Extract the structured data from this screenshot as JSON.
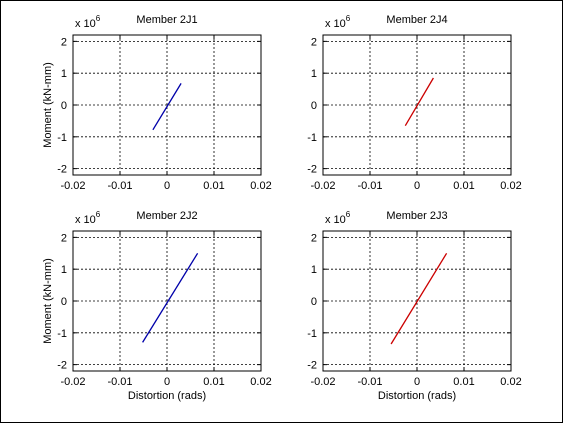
{
  "chart_data": [
    {
      "type": "line",
      "title": "Member 2J1",
      "xlabel": "",
      "ylabel": "Moment (kN-mm)",
      "multiplier": {
        "base": "x 10",
        "exponent": "6"
      },
      "xlim": [
        -0.02,
        0.02
      ],
      "ylim": [
        -2.2,
        2.2
      ],
      "xticks": [
        "-0.02",
        "-0.01",
        "0",
        "0.01",
        "0.02"
      ],
      "yticks": [
        "2",
        "1",
        "0",
        "-1",
        "-2"
      ],
      "grid": true,
      "series": [
        {
          "color": "#0000aa",
          "x": [
            -0.003,
            0.003
          ],
          "y": [
            -0.78,
            0.68
          ]
        }
      ]
    },
    {
      "type": "line",
      "title": "Member 2J4",
      "xlabel": "",
      "ylabel": "",
      "multiplier": {
        "base": "x 10",
        "exponent": "6"
      },
      "xlim": [
        -0.02,
        0.02
      ],
      "ylim": [
        -2.2,
        2.2
      ],
      "xticks": [
        "-0.02",
        "-0.01",
        "0",
        "0.01",
        "0.02"
      ],
      "yticks": [
        "2",
        "1",
        "0",
        "-1",
        "-2"
      ],
      "grid": true,
      "series": [
        {
          "color": "#cc0000",
          "x": [
            -0.0025,
            0.0035
          ],
          "y": [
            -0.65,
            0.85
          ]
        }
      ]
    },
    {
      "type": "line",
      "title": "Member 2J2",
      "xlabel": "Distortion (rads)",
      "ylabel": "Moment (kN-mm)",
      "multiplier": {
        "base": "x 10",
        "exponent": "6"
      },
      "xlim": [
        -0.02,
        0.02
      ],
      "ylim": [
        -2.2,
        2.2
      ],
      "xticks": [
        "-0.02",
        "-0.01",
        "0",
        "0.01",
        "0.02"
      ],
      "yticks": [
        "2",
        "1",
        "0",
        "-1",
        "-2"
      ],
      "grid": true,
      "series": [
        {
          "color": "#0000aa",
          "x": [
            -0.0052,
            0.0065
          ],
          "y": [
            -1.3,
            1.5
          ]
        }
      ]
    },
    {
      "type": "line",
      "title": "Member 2J3",
      "xlabel": "Distortion (rads)",
      "ylabel": "",
      "multiplier": {
        "base": "x 10",
        "exponent": "6"
      },
      "xlim": [
        -0.02,
        0.02
      ],
      "ylim": [
        -2.2,
        2.2
      ],
      "xticks": [
        "-0.02",
        "-0.01",
        "0",
        "0.01",
        "0.02"
      ],
      "yticks": [
        "2",
        "1",
        "0",
        "-1",
        "-2"
      ],
      "grid": true,
      "series": [
        {
          "color": "#cc0000",
          "x": [
            -0.0055,
            0.0063
          ],
          "y": [
            -1.35,
            1.5
          ]
        }
      ]
    }
  ]
}
